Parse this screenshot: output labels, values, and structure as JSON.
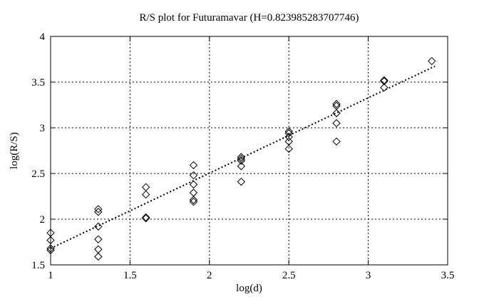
{
  "colors": {
    "background": "#ffffff",
    "foreground": "#000000"
  },
  "chart_data": {
    "type": "scatter",
    "title": "R/S plot for Futuramavar (H=0.823985283707746)",
    "xlabel": "log(d)",
    "ylabel": "log(R/S)",
    "xlim": [
      1,
      3.5
    ],
    "ylim": [
      1.5,
      4
    ],
    "xticks": [
      1,
      1.5,
      2,
      2.5,
      3,
      3.5
    ],
    "xtick_labels": [
      "1",
      "1.5",
      "2",
      "2.5",
      "3",
      "3.5"
    ],
    "yticks": [
      1.5,
      2,
      2.5,
      3,
      3.5,
      4
    ],
    "ytick_labels": [
      "1.5",
      "2",
      "2.5",
      "3",
      "3.5",
      "4"
    ],
    "grid": true,
    "legend_position": "none",
    "marker": "open-diamond",
    "hurst_exponent": 0.823985283707746,
    "series": [
      {
        "name": "R/S values",
        "points": [
          [
            1.0,
            1.85
          ],
          [
            1.0,
            1.77
          ],
          [
            1.0,
            1.68
          ],
          [
            1.0,
            1.66
          ],
          [
            1.3,
            2.11
          ],
          [
            1.3,
            2.08
          ],
          [
            1.3,
            1.92
          ],
          [
            1.3,
            1.78
          ],
          [
            1.3,
            1.67
          ],
          [
            1.3,
            1.59
          ],
          [
            1.6,
            2.35
          ],
          [
            1.6,
            2.27
          ],
          [
            1.6,
            2.02
          ],
          [
            1.6,
            2.01
          ],
          [
            1.9,
            2.59
          ],
          [
            1.9,
            2.48
          ],
          [
            1.9,
            2.38
          ],
          [
            1.9,
            2.29
          ],
          [
            1.9,
            2.21
          ],
          [
            1.9,
            2.19
          ],
          [
            2.2,
            2.68
          ],
          [
            2.2,
            2.66
          ],
          [
            2.2,
            2.64
          ],
          [
            2.2,
            2.58
          ],
          [
            2.2,
            2.41
          ],
          [
            2.5,
            2.96
          ],
          [
            2.5,
            2.94
          ],
          [
            2.5,
            2.9
          ],
          [
            2.5,
            2.85
          ],
          [
            2.5,
            2.77
          ],
          [
            2.8,
            3.26
          ],
          [
            2.8,
            3.24
          ],
          [
            2.8,
            3.16
          ],
          [
            2.8,
            3.05
          ],
          [
            2.8,
            2.85
          ],
          [
            3.1,
            3.52
          ],
          [
            3.1,
            3.51
          ],
          [
            3.1,
            3.44
          ],
          [
            3.4,
            3.73
          ]
        ]
      }
    ],
    "fit_line": {
      "style": "dotted",
      "slope": 0.823985283707746,
      "intercept": 0.856,
      "x_range": [
        1.0,
        3.42
      ]
    }
  }
}
